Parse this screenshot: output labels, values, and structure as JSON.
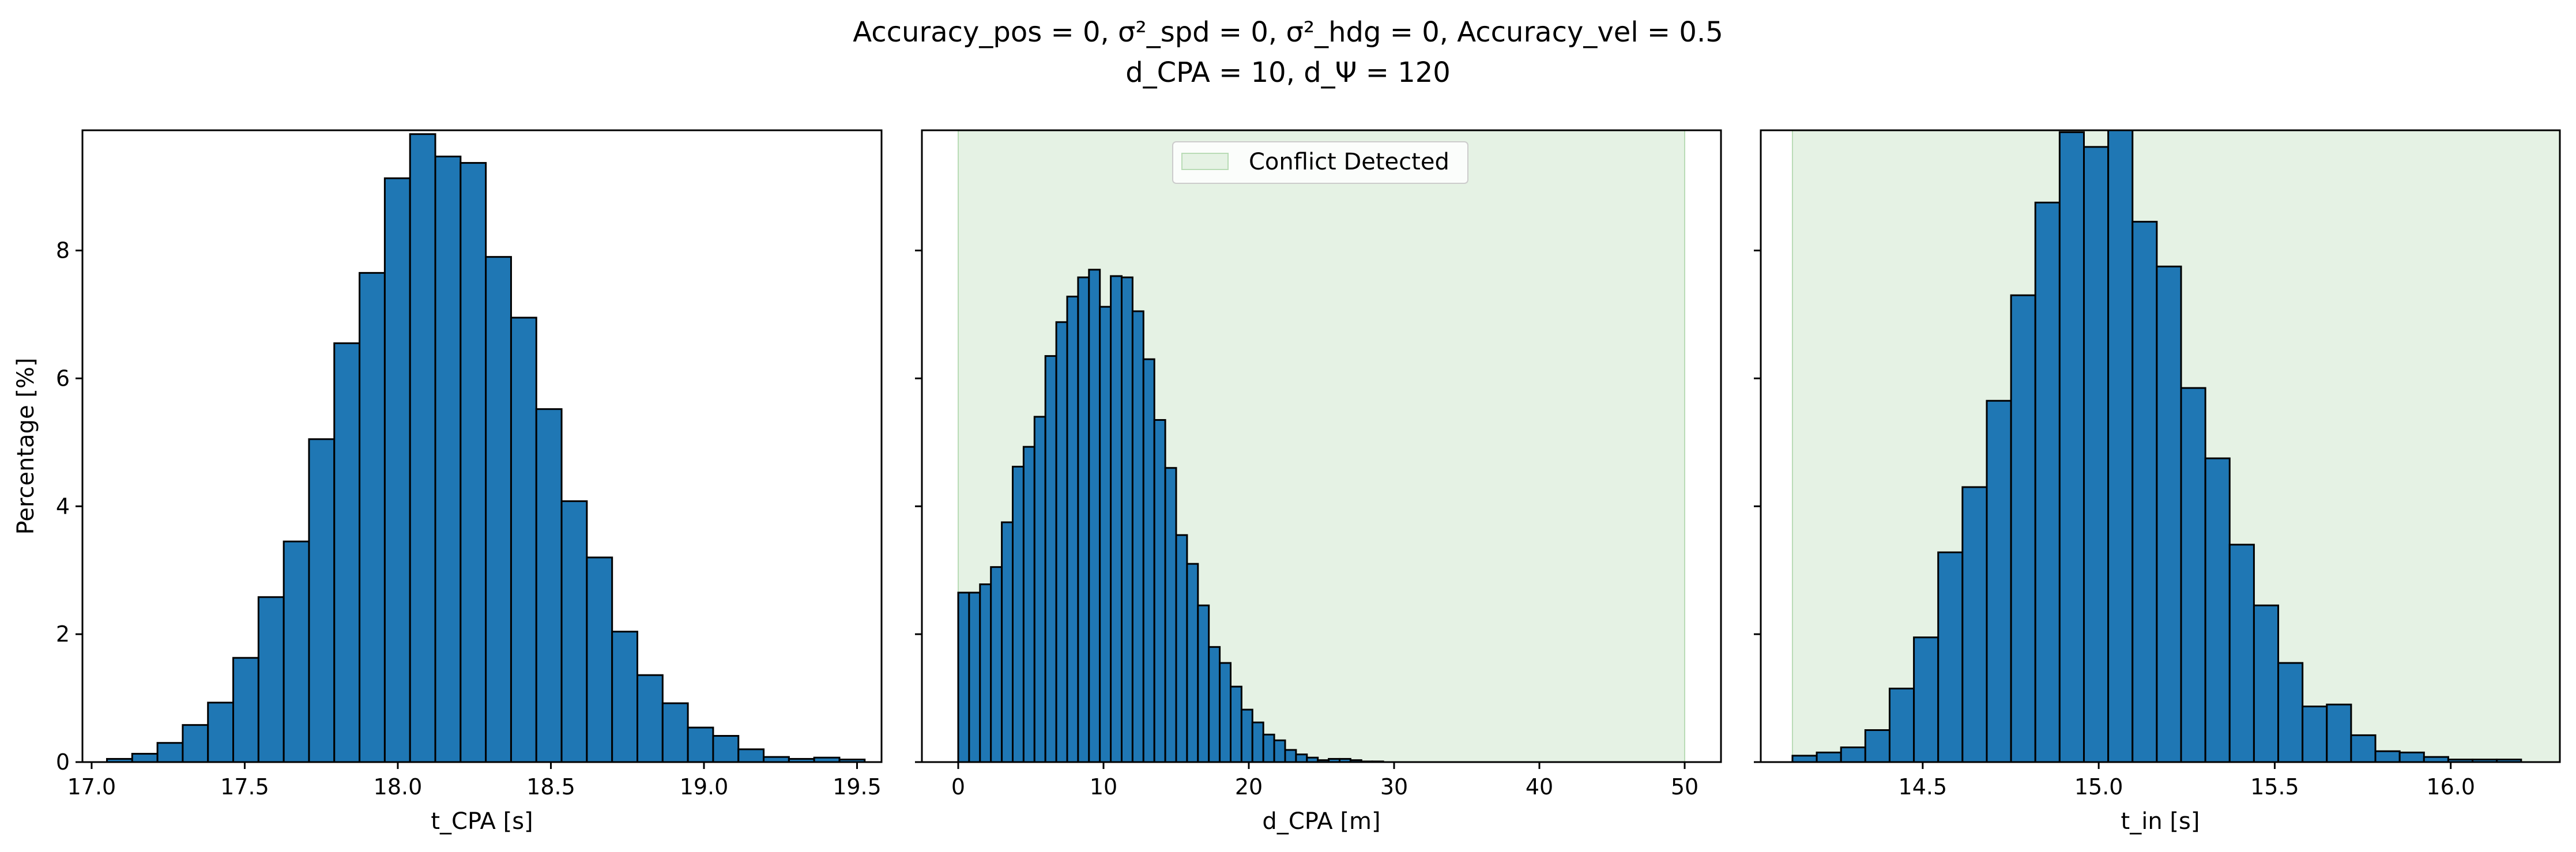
{
  "title_line1": "Accuracy_pos = 0, σ²_spd = 0, σ²_hdg = 0, Accuracy_vel = 0.5",
  "title_line2": "d_CPA = 10, d_Ψ = 120",
  "colors": {
    "bar_fill": "#1f77b4",
    "bar_edge": "#000000",
    "conflict_fill": "#e5f2e4",
    "conflict_edge": "#b9dcb6"
  },
  "chart_data": [
    {
      "type": "bar",
      "xlabel": "t_CPA [s]",
      "ylabel": "Percentage [%]",
      "xlim": [
        16.97,
        19.58
      ],
      "ylim": [
        0,
        9.88
      ],
      "xticks": [
        "17.0",
        "17.5",
        "18.0",
        "18.5",
        "19.0",
        "19.5"
      ],
      "yticks": [
        "0",
        "2",
        "4",
        "6",
        "8"
      ],
      "bins": {
        "start": 17.05,
        "width": 0.0825
      },
      "values": [
        0.05,
        0.13,
        0.3,
        0.58,
        0.93,
        1.63,
        2.58,
        3.45,
        5.05,
        6.55,
        7.65,
        9.13,
        9.82,
        9.47,
        9.37,
        7.9,
        6.95,
        5.52,
        4.08,
        3.2,
        2.04,
        1.36,
        0.92,
        0.54,
        0.41,
        0.2,
        0.08,
        0.05,
        0.07,
        0.04
      ]
    },
    {
      "type": "bar",
      "xlabel": "d_CPA [m]",
      "ylabel": "",
      "xlim": [
        -2.5,
        52.5
      ],
      "ylim": [
        0,
        9.88
      ],
      "xticks": [
        "0",
        "10",
        "20",
        "30",
        "40",
        "50"
      ],
      "yticks": [
        "0",
        "2",
        "4",
        "6",
        "8"
      ],
      "bins": {
        "start": 0,
        "width": 0.75
      },
      "values": [
        2.65,
        2.65,
        2.78,
        3.05,
        3.75,
        4.62,
        4.93,
        5.4,
        6.35,
        6.88,
        7.28,
        7.58,
        7.7,
        7.12,
        7.6,
        7.58,
        7.05,
        6.3,
        5.35,
        4.6,
        3.55,
        3.1,
        2.45,
        1.8,
        1.55,
        1.18,
        0.82,
        0.62,
        0.43,
        0.34,
        0.19,
        0.12,
        0.07,
        0.03,
        0.05,
        0.05,
        0.03,
        0.01,
        0.01
      ],
      "shaded_region": {
        "x0": 0,
        "x1": 50,
        "label": "Conflict Detected"
      },
      "legend_position": "top-center"
    },
    {
      "type": "bar",
      "xlabel": "t_in [s]",
      "ylabel": "",
      "xlim": [
        14.04,
        16.31
      ],
      "ylim": [
        0,
        9.88
      ],
      "xticks": [
        "14.5",
        "15.0",
        "15.5",
        "16.0"
      ],
      "yticks": [
        "0",
        "2",
        "4",
        "6",
        "8"
      ],
      "bins": {
        "start": 14.13,
        "width": 0.069
      },
      "values": [
        0.1,
        0.15,
        0.23,
        0.5,
        1.15,
        1.95,
        3.28,
        4.3,
        5.65,
        7.3,
        8.75,
        9.85,
        9.62,
        10.1,
        8.45,
        7.75,
        5.85,
        4.75,
        3.4,
        2.45,
        1.55,
        0.87,
        0.9,
        0.42,
        0.17,
        0.15,
        0.08,
        0.04,
        0.04,
        0.04
      ],
      "shaded_region": {
        "x0": 14.13,
        "x1": 16.31
      }
    }
  ]
}
